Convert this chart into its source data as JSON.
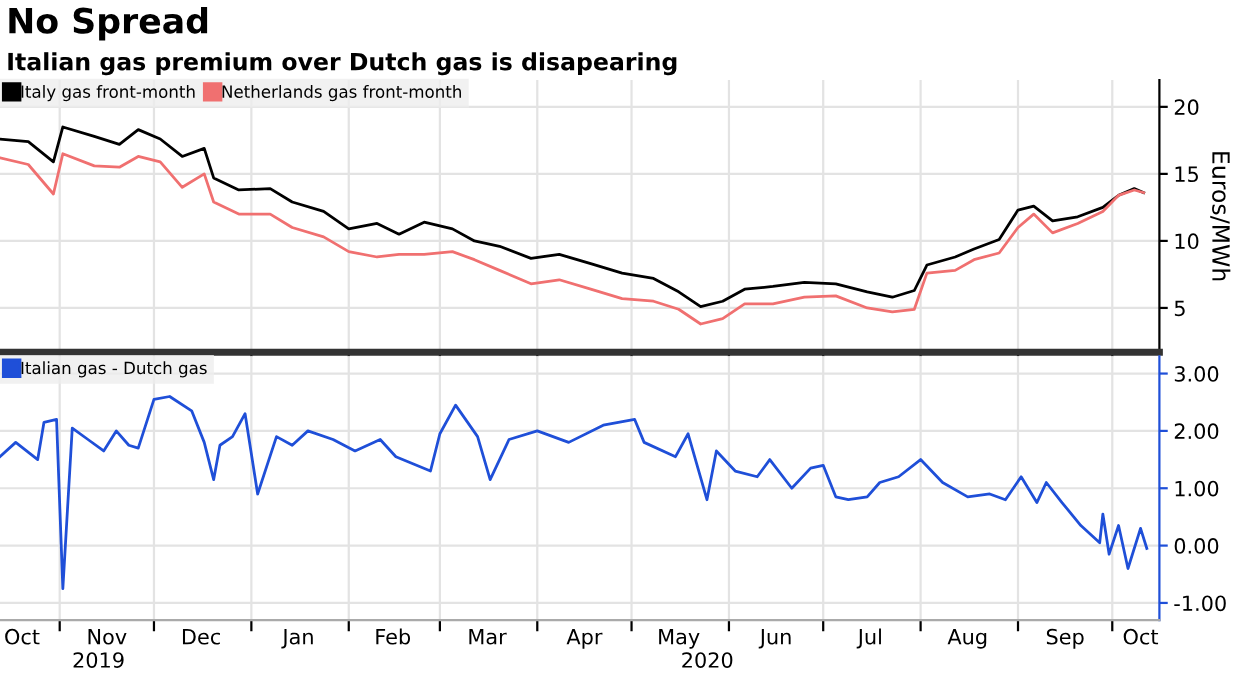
{
  "chart_data": [
    {
      "type": "line",
      "title": "No Spread",
      "subtitle": "Italian gas premium over Dutch gas is disapearing",
      "ylabel": "Euros/MWh",
      "xlim": [
        "2019-10-13",
        "2020-10-16"
      ],
      "ylim": [
        1.7,
        22
      ],
      "yticks": [
        5,
        10,
        15,
        20
      ],
      "xticks": [
        {
          "value": "2019-11-01",
          "label": null
        },
        {
          "value": "2019-12-01",
          "label": null
        },
        {
          "value": "2020-01-01",
          "label": null
        },
        {
          "value": "2020-02-01",
          "label": null
        },
        {
          "value": "2020-03-01",
          "label": null
        },
        {
          "value": "2020-04-01",
          "label": null
        },
        {
          "value": "2020-05-01",
          "label": null
        },
        {
          "value": "2020-06-01",
          "label": null
        },
        {
          "value": "2020-07-01",
          "label": null
        },
        {
          "value": "2020-08-01",
          "label": null
        },
        {
          "value": "2020-09-01",
          "label": null
        },
        {
          "value": "2020-10-01",
          "label": null
        }
      ],
      "tick_labels": "y",
      "grid": true,
      "legend": "top left",
      "x": [
        "2019-10-13",
        "2019-10-22",
        "2019-10-30",
        "2019-11-02",
        "2019-11-12",
        "2019-11-20",
        "2019-11-26",
        "2019-12-03",
        "2019-12-10",
        "2019-12-17",
        "2019-12-20",
        "2019-12-28",
        "2020-01-07",
        "2020-01-14",
        "2020-01-24",
        "2020-02-01",
        "2020-02-10",
        "2020-02-17",
        "2020-02-25",
        "2020-03-05",
        "2020-03-12",
        "2020-03-20",
        "2020-03-30",
        "2020-04-08",
        "2020-04-18",
        "2020-04-28",
        "2020-05-08",
        "2020-05-16",
        "2020-05-23",
        "2020-05-30",
        "2020-06-06",
        "2020-06-15",
        "2020-06-25",
        "2020-07-05",
        "2020-07-15",
        "2020-07-23",
        "2020-07-30",
        "2020-08-03",
        "2020-08-12",
        "2020-08-18",
        "2020-08-26",
        "2020-09-01",
        "2020-09-06",
        "2020-09-12",
        "2020-09-20",
        "2020-09-28",
        "2020-10-03",
        "2020-10-08",
        "2020-10-11"
      ],
      "series": [
        {
          "name": "Italy gas front-month",
          "color": "#000000",
          "values": [
            17.6,
            17.4,
            15.9,
            18.5,
            17.8,
            17.2,
            18.3,
            17.6,
            16.3,
            16.9,
            14.7,
            13.8,
            13.9,
            12.9,
            12.2,
            10.9,
            11.3,
            10.5,
            11.4,
            10.9,
            10.0,
            9.6,
            8.7,
            9.0,
            8.3,
            7.6,
            7.2,
            6.2,
            5.1,
            5.5,
            6.4,
            6.6,
            6.9,
            6.8,
            6.2,
            5.8,
            6.3,
            8.2,
            8.8,
            9.4,
            10.1,
            12.3,
            12.6,
            11.5,
            11.8,
            12.5,
            13.4,
            13.9,
            13.6
          ]
        },
        {
          "name": "Netherlands gas front-month",
          "color": "#f07070",
          "values": [
            16.2,
            15.7,
            13.5,
            16.5,
            15.6,
            15.5,
            16.3,
            15.9,
            14.0,
            15.0,
            12.9,
            12.0,
            12.0,
            11.0,
            10.3,
            9.2,
            8.8,
            9.0,
            9.0,
            9.2,
            8.6,
            7.8,
            6.8,
            7.1,
            6.4,
            5.7,
            5.5,
            4.9,
            3.8,
            4.2,
            5.3,
            5.3,
            5.8,
            5.9,
            5.0,
            4.7,
            4.9,
            7.6,
            7.8,
            8.6,
            9.1,
            11.0,
            12.0,
            10.6,
            11.3,
            12.2,
            13.4,
            13.8,
            13.6
          ]
        }
      ]
    },
    {
      "type": "line",
      "xlim": [
        "2019-10-13",
        "2020-10-16"
      ],
      "ylim": [
        -1.3,
        3.3
      ],
      "yticks": [
        {
          "value": -1,
          "label": "-1.00"
        },
        {
          "value": 0,
          "label": "0.00"
        },
        {
          "value": 1,
          "label": "1.00"
        },
        {
          "value": 2,
          "label": "2.00"
        },
        {
          "value": 3,
          "label": "3.00"
        }
      ],
      "xticks": [
        {
          "value": "2019-11-01",
          "label": null
        },
        {
          "value": "2019-10-20",
          "label": "Oct"
        },
        {
          "value": "2019-11-16",
          "label": "Nov"
        },
        {
          "value": "2019-12-01",
          "label": null
        },
        {
          "value": "2019-12-16",
          "label": "Dec"
        },
        {
          "value": "2020-01-01",
          "label": null
        },
        {
          "value": "2020-01-16",
          "label": "Jan"
        },
        {
          "value": "2020-02-01",
          "label": null
        },
        {
          "value": "2020-02-15",
          "label": "Feb"
        },
        {
          "value": "2020-03-01",
          "label": null
        },
        {
          "value": "2020-03-16",
          "label": "Mar"
        },
        {
          "value": "2020-04-01",
          "label": null
        },
        {
          "value": "2020-04-16",
          "label": "Apr"
        },
        {
          "value": "2020-05-01",
          "label": null
        },
        {
          "value": "2020-05-16",
          "label": "May"
        },
        {
          "value": "2020-06-01",
          "label": null
        },
        {
          "value": "2020-06-16",
          "label": "Jun"
        },
        {
          "value": "2020-07-01",
          "label": null
        },
        {
          "value": "2020-07-16",
          "label": "Jul"
        },
        {
          "value": "2020-08-01",
          "label": null
        },
        {
          "value": "2020-08-16",
          "label": "Aug"
        },
        {
          "value": "2020-09-01",
          "label": null
        },
        {
          "value": "2020-09-16",
          "label": "Sep"
        },
        {
          "value": "2020-10-01",
          "label": null
        },
        {
          "value": "2020-10-10",
          "label": "Oct"
        }
      ],
      "grid": true,
      "legend": "top left",
      "annotations": [
        "2019",
        "2020"
      ],
      "x": [
        "2019-10-13",
        "2019-10-18",
        "2019-10-25",
        "2019-10-27",
        "2019-10-31",
        "2019-11-02",
        "2019-11-05",
        "2019-11-10",
        "2019-11-15",
        "2019-11-19",
        "2019-11-23",
        "2019-11-26",
        "2019-12-01",
        "2019-12-06",
        "2019-12-13",
        "2019-12-17",
        "2019-12-20",
        "2019-12-22",
        "2019-12-26",
        "2019-12-30",
        "2020-01-03",
        "2020-01-09",
        "2020-01-14",
        "2020-01-19",
        "2020-01-27",
        "2020-02-03",
        "2020-02-11",
        "2020-02-16",
        "2020-02-27",
        "2020-03-01",
        "2020-03-06",
        "2020-03-13",
        "2020-03-17",
        "2020-03-23",
        "2020-04-01",
        "2020-04-11",
        "2020-04-22",
        "2020-05-02",
        "2020-05-05",
        "2020-05-15",
        "2020-05-19",
        "2020-05-25",
        "2020-05-28",
        "2020-06-03",
        "2020-06-10",
        "2020-06-14",
        "2020-06-21",
        "2020-06-27",
        "2020-07-01",
        "2020-07-05",
        "2020-07-09",
        "2020-07-15",
        "2020-07-19",
        "2020-07-25",
        "2020-08-01",
        "2020-08-08",
        "2020-08-16",
        "2020-08-23",
        "2020-08-28",
        "2020-09-02",
        "2020-09-07",
        "2020-09-10",
        "2020-09-15",
        "2020-09-21",
        "2020-09-27",
        "2020-09-28",
        "2020-09-30",
        "2020-10-03",
        "2020-10-06",
        "2020-10-10",
        "2020-10-12"
      ],
      "series": [
        {
          "name": "Italian gas - Dutch gas",
          "color": "#1f4fd8",
          "values": [
            1.55,
            1.8,
            1.5,
            2.15,
            2.2,
            -0.75,
            2.05,
            1.85,
            1.65,
            2.0,
            1.75,
            1.7,
            2.55,
            2.6,
            2.35,
            1.8,
            1.15,
            1.75,
            1.9,
            2.3,
            0.9,
            1.9,
            1.75,
            2.0,
            1.85,
            1.65,
            1.85,
            1.55,
            1.3,
            1.95,
            2.45,
            1.9,
            1.15,
            1.85,
            2.0,
            1.8,
            2.1,
            2.2,
            1.8,
            1.55,
            1.95,
            0.8,
            1.65,
            1.3,
            1.2,
            1.5,
            1.0,
            1.35,
            1.4,
            0.85,
            0.8,
            0.85,
            1.1,
            1.2,
            1.5,
            1.1,
            0.85,
            0.9,
            0.8,
            1.2,
            0.75,
            1.1,
            0.75,
            0.35,
            0.05,
            0.55,
            -0.15,
            0.35,
            -0.4,
            0.3,
            -0.05
          ]
        }
      ]
    }
  ]
}
